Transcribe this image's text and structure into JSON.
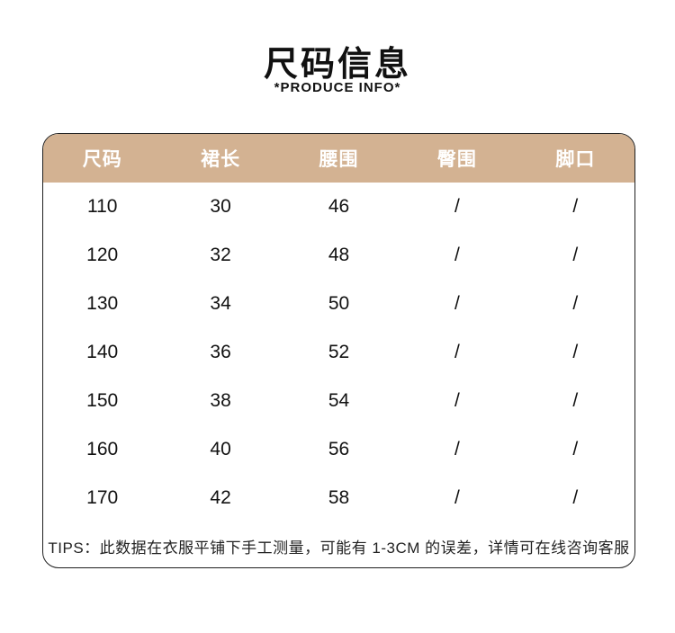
{
  "page": {
    "title": "尺码信息",
    "subtitle": "*PRODUCE INFO*"
  },
  "table": {
    "headers": [
      "尺码",
      "裙长",
      "腰围",
      "臀围",
      "脚口"
    ],
    "rows": [
      [
        "110",
        "30",
        "46",
        "/",
        "/"
      ],
      [
        "120",
        "32",
        "48",
        "/",
        "/"
      ],
      [
        "130",
        "34",
        "50",
        "/",
        "/"
      ],
      [
        "140",
        "36",
        "52",
        "/",
        "/"
      ],
      [
        "150",
        "38",
        "54",
        "/",
        "/"
      ],
      [
        "160",
        "40",
        "56",
        "/",
        "/"
      ],
      [
        "170",
        "42",
        "58",
        "/",
        "/"
      ]
    ],
    "tips": "TIPS：此数据在衣服平铺下手工测量，可能有 1-3CM 的误差，详情可在线咨询客服"
  },
  "colors": {
    "header_bg": "#d3b292",
    "header_text": "#ffffff",
    "border": "#1f1f1f",
    "body_text": "#111111",
    "tips_text": "#222222",
    "background": "#ffffff"
  }
}
